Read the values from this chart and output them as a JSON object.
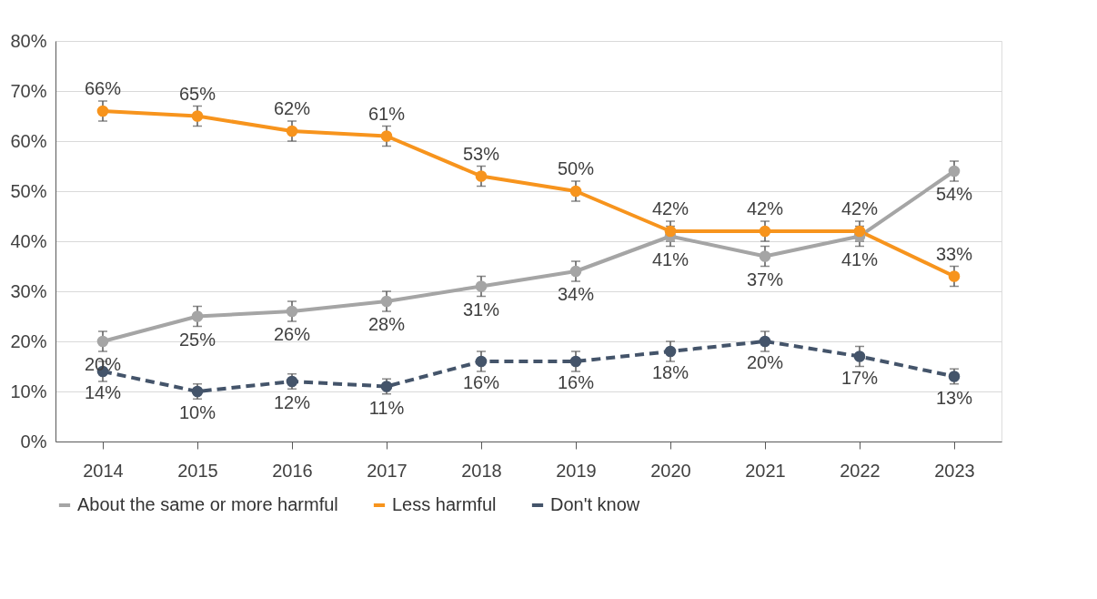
{
  "chart_data": {
    "type": "line",
    "categories": [
      "2014",
      "2015",
      "2016",
      "2017",
      "2018",
      "2019",
      "2020",
      "2021",
      "2022",
      "2023"
    ],
    "series": [
      {
        "name": "About the same or more harmful",
        "color": "#a5a5a5",
        "line_style": "solid",
        "values": [
          20,
          25,
          26,
          28,
          31,
          34,
          41,
          37,
          41,
          54
        ],
        "errors": [
          2,
          2,
          2,
          2,
          2,
          2,
          2,
          2,
          2,
          2
        ],
        "value_labels": [
          "20%",
          "25%",
          "26%",
          "28%",
          "31%",
          "34%",
          "41%",
          "37%",
          "41%",
          "54%"
        ]
      },
      {
        "name": "Less harmful",
        "color": "#f7941d",
        "line_style": "solid",
        "values": [
          66,
          65,
          62,
          61,
          53,
          50,
          42,
          42,
          42,
          33
        ],
        "errors": [
          2,
          2,
          2,
          2,
          2,
          2,
          2,
          2,
          2,
          2
        ],
        "value_labels": [
          "66%",
          "65%",
          "62%",
          "61%",
          "53%",
          "50%",
          "42%",
          "42%",
          "42%",
          "33%"
        ]
      },
      {
        "name": "Don't know",
        "color": "#44546a",
        "line_style": "dashed",
        "values": [
          14,
          10,
          12,
          11,
          16,
          16,
          18,
          20,
          17,
          13
        ],
        "errors": [
          2,
          1.5,
          1.5,
          1.5,
          2,
          2,
          2,
          2,
          2,
          1.5
        ],
        "value_labels": [
          "14%",
          "10%",
          "12%",
          "11%",
          "16%",
          "16%",
          "18%",
          "20%",
          "17%",
          "13%"
        ]
      }
    ],
    "ylim": [
      0,
      80
    ],
    "yticks": [
      {
        "value": 0,
        "label": "0%"
      },
      {
        "value": 10,
        "label": "10%"
      },
      {
        "value": 20,
        "label": "20%"
      },
      {
        "value": 30,
        "label": "30%"
      },
      {
        "value": 40,
        "label": "40%"
      },
      {
        "value": 50,
        "label": "50%"
      },
      {
        "value": 60,
        "label": "60%"
      },
      {
        "value": 70,
        "label": "70%"
      },
      {
        "value": 80,
        "label": "80%"
      }
    ],
    "grid": "y",
    "legend": "bottom",
    "marker": "circle"
  }
}
